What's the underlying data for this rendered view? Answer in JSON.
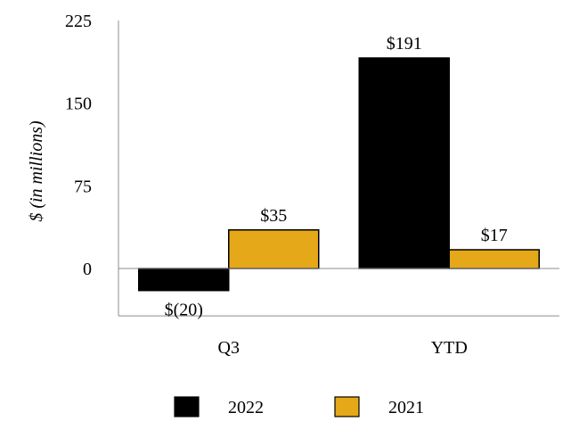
{
  "chart_data": {
    "type": "bar",
    "title": "",
    "xlabel": "",
    "ylabel": "$ (in millions)",
    "categories": [
      "Q3",
      "YTD"
    ],
    "series": [
      {
        "name": "2022",
        "values": [
          -20,
          191
        ],
        "labels": [
          "$(20)",
          "$191"
        ],
        "color": "#000000"
      },
      {
        "name": "2021",
        "values": [
          35,
          17
        ],
        "labels": [
          "$35",
          "$17"
        ],
        "color": "#E5A818"
      }
    ],
    "ylim": [
      -43,
      225
    ],
    "yticks": [
      0,
      75,
      150,
      225
    ],
    "ytick_labels": [
      "0",
      "75",
      "150",
      "225"
    ],
    "grid": false,
    "legend_position": "bottom"
  }
}
